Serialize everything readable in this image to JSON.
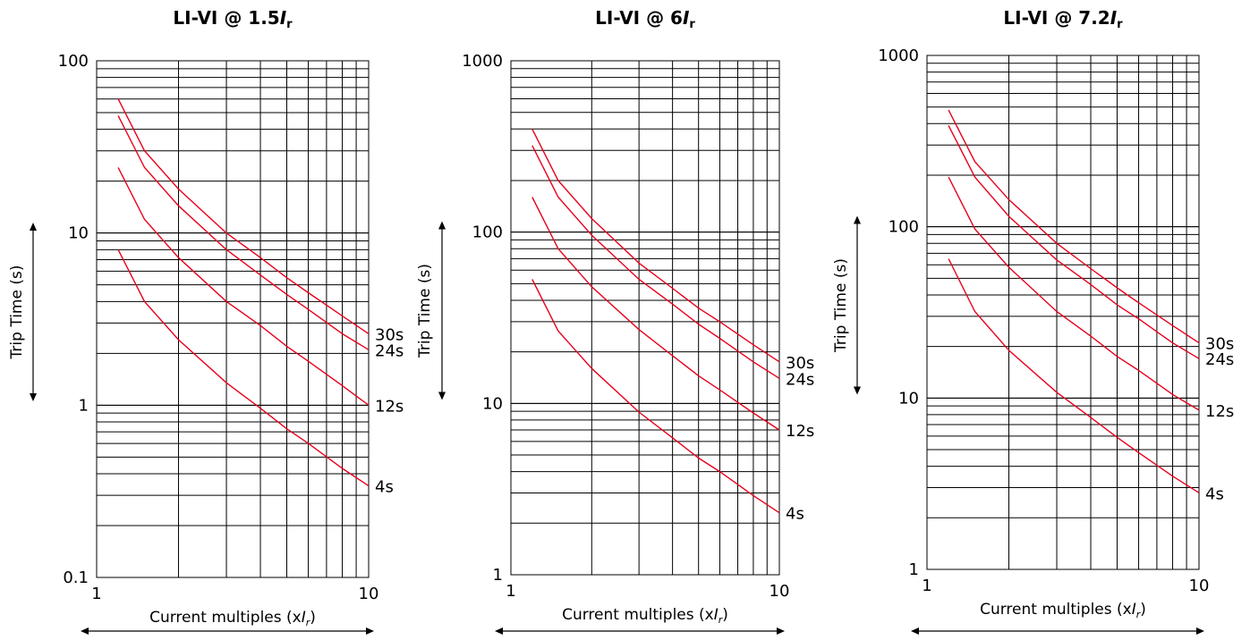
{
  "chart_data": [
    {
      "type": "line",
      "title": "LI-VI @ 1.5",
      "title_italic": "I",
      "title_sub": "r",
      "xlabel": "Current multiples (x",
      "xlabel_italic": "I",
      "xlabel_sub": "r",
      "xlabel_close": ")",
      "ylabel": "Trip Time (s)",
      "x_scale": "log",
      "y_scale": "log",
      "xlim": [
        1,
        10
      ],
      "ylim": [
        0.1,
        100
      ],
      "x_ticks": [
        1,
        10
      ],
      "x_tick_labels": [
        "1",
        "10"
      ],
      "y_ticks": [
        0.1,
        1,
        10,
        100
      ],
      "y_tick_labels": [
        "0.1",
        "1",
        "10",
        "100"
      ],
      "grid": true,
      "series": [
        {
          "name": "30s",
          "x": [
            1.2,
            1.5,
            2,
            3,
            4,
            5,
            6,
            8,
            10
          ],
          "y": [
            60,
            30,
            18,
            10,
            7.2,
            5.5,
            4.5,
            3.3,
            2.6
          ]
        },
        {
          "name": "24s",
          "x": [
            1.2,
            1.5,
            2,
            3,
            4,
            5,
            6,
            8,
            10
          ],
          "y": [
            48,
            24,
            14.4,
            8,
            5.7,
            4.4,
            3.6,
            2.6,
            2.1
          ]
        },
        {
          "name": "12s",
          "x": [
            1.2,
            1.5,
            2,
            3,
            4,
            5,
            6,
            8,
            10
          ],
          "y": [
            24,
            12,
            7.2,
            4,
            2.9,
            2.2,
            1.8,
            1.3,
            1.0
          ]
        },
        {
          "name": "4s",
          "x": [
            1.2,
            1.5,
            2,
            3,
            4,
            5,
            6,
            8,
            10
          ],
          "y": [
            8,
            4,
            2.4,
            1.35,
            0.96,
            0.73,
            0.6,
            0.43,
            0.34
          ]
        }
      ]
    },
    {
      "type": "line",
      "title": "LI-VI @ 6",
      "title_italic": "I",
      "title_sub": "r",
      "xlabel": "Current multiples (x",
      "xlabel_italic": "I",
      "xlabel_sub": "r",
      "xlabel_close": ")",
      "ylabel": "Trip Time (s)",
      "x_scale": "log",
      "y_scale": "log",
      "xlim": [
        1,
        10
      ],
      "ylim": [
        1,
        1000
      ],
      "x_ticks": [
        1,
        10
      ],
      "x_tick_labels": [
        "1",
        "10"
      ],
      "y_ticks": [
        1,
        10,
        100,
        1000
      ],
      "y_tick_labels": [
        "1",
        "10",
        "100",
        "1000"
      ],
      "grid": true,
      "series": [
        {
          "name": "30s",
          "x": [
            1.2,
            1.5,
            2,
            3,
            4,
            5,
            6,
            8,
            10
          ],
          "y": [
            400,
            200,
            120,
            66,
            47,
            36,
            30,
            22,
            17.5
          ]
        },
        {
          "name": "24s",
          "x": [
            1.2,
            1.5,
            2,
            3,
            4,
            5,
            6,
            8,
            10
          ],
          "y": [
            320,
            160,
            96,
            53,
            38,
            29,
            24,
            17.5,
            14
          ]
        },
        {
          "name": "12s",
          "x": [
            1.2,
            1.5,
            2,
            3,
            4,
            5,
            6,
            8,
            10
          ],
          "y": [
            160,
            80,
            48,
            27,
            19,
            14.5,
            12,
            8.8,
            7
          ]
        },
        {
          "name": "4s",
          "x": [
            1.2,
            1.5,
            2,
            3,
            4,
            5,
            6,
            8,
            10
          ],
          "y": [
            53,
            26.5,
            16,
            8.9,
            6.3,
            4.8,
            4,
            2.9,
            2.3
          ]
        }
      ]
    },
    {
      "type": "line",
      "title": "LI-VI @ 7.2",
      "title_italic": "I",
      "title_sub": "r",
      "xlabel": "Current multiples (x",
      "xlabel_italic": "I",
      "xlabel_sub": "r",
      "xlabel_close": ")",
      "ylabel": "Trip Time (s)",
      "x_scale": "log",
      "y_scale": "log",
      "xlim": [
        1,
        10
      ],
      "ylim": [
        1,
        1000
      ],
      "x_ticks": [
        1,
        10
      ],
      "x_tick_labels": [
        "1",
        "10"
      ],
      "y_ticks": [
        1,
        10,
        100,
        1000
      ],
      "y_tick_labels": [
        "1",
        "10",
        "100",
        "1000"
      ],
      "grid": true,
      "series": [
        {
          "name": "30s",
          "x": [
            1.2,
            1.5,
            2,
            3,
            4,
            5,
            6,
            8,
            10
          ],
          "y": [
            480,
            240,
            144,
            80,
            57,
            44,
            36,
            26.5,
            21
          ]
        },
        {
          "name": "24s",
          "x": [
            1.2,
            1.5,
            2,
            3,
            4,
            5,
            6,
            8,
            10
          ],
          "y": [
            390,
            195,
            115,
            64,
            46,
            35,
            29,
            21,
            17
          ]
        },
        {
          "name": "12s",
          "x": [
            1.2,
            1.5,
            2,
            3,
            4,
            5,
            6,
            8,
            10
          ],
          "y": [
            195,
            97,
            58,
            32,
            23,
            17.5,
            14.5,
            10.5,
            8.5
          ]
        },
        {
          "name": "4s",
          "x": [
            1.2,
            1.5,
            2,
            3,
            4,
            5,
            6,
            8,
            10
          ],
          "y": [
            65,
            32,
            19,
            10.8,
            7.7,
            5.9,
            4.8,
            3.5,
            2.8
          ]
        }
      ]
    }
  ],
  "colors": {
    "curve": "#e8001c",
    "grid": "#000000",
    "text": "#000000",
    "background": "#ffffff"
  }
}
